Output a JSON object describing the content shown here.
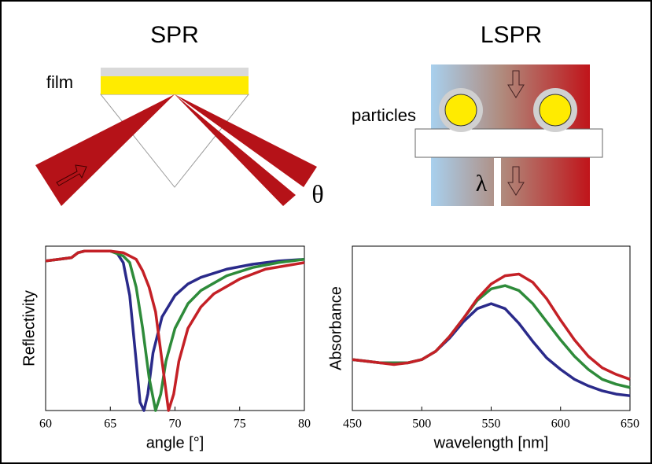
{
  "diagram": {
    "spr_title": "SPR",
    "film": "film",
    "theta": "θ",
    "lspr_title": "LSPR",
    "particles": "particles",
    "lambda": "λ"
  },
  "chart_data": [
    {
      "type": "line",
      "x_label": "angle [°]",
      "y_label": "Reflectivity",
      "xlim": [
        60,
        80
      ],
      "xticks": [
        60,
        65,
        70,
        75,
        80
      ],
      "ylim": [
        0,
        1
      ],
      "series": [
        {
          "color": "#2a2a8a",
          "x": [
            60,
            61,
            62,
            62.5,
            63,
            64,
            65,
            65.5,
            66,
            66.5,
            67,
            67.3,
            67.6,
            67.9,
            68.3,
            69,
            70,
            71,
            72,
            74,
            76,
            78,
            80
          ],
          "values": [
            0.91,
            0.92,
            0.93,
            0.96,
            0.97,
            0.97,
            0.97,
            0.96,
            0.9,
            0.7,
            0.3,
            0.05,
            0.0,
            0.1,
            0.35,
            0.57,
            0.7,
            0.77,
            0.81,
            0.86,
            0.89,
            0.91,
            0.92
          ]
        },
        {
          "color": "#2e8b3a",
          "x": [
            60,
            61,
            62,
            62.5,
            63,
            64,
            65,
            66,
            66.5,
            67,
            67.5,
            68,
            68.5,
            68.9,
            69.3,
            70,
            71,
            72,
            74,
            76,
            78,
            80
          ],
          "values": [
            0.91,
            0.92,
            0.93,
            0.96,
            0.97,
            0.97,
            0.97,
            0.94,
            0.9,
            0.75,
            0.5,
            0.2,
            0.0,
            0.1,
            0.3,
            0.5,
            0.65,
            0.73,
            0.82,
            0.87,
            0.9,
            0.92
          ]
        },
        {
          "color": "#c42026",
          "x": [
            60,
            61,
            62,
            62.5,
            63,
            64,
            65,
            66,
            67,
            67.5,
            68,
            68.5,
            69,
            69.5,
            69.9,
            70.3,
            71,
            72,
            73,
            75,
            77,
            80
          ],
          "values": [
            0.91,
            0.92,
            0.93,
            0.96,
            0.97,
            0.97,
            0.97,
            0.96,
            0.92,
            0.85,
            0.75,
            0.6,
            0.3,
            0.0,
            0.1,
            0.3,
            0.5,
            0.63,
            0.71,
            0.8,
            0.86,
            0.9
          ]
        }
      ]
    },
    {
      "type": "line",
      "x_label": "wavelength [nm]",
      "y_label": "Absorbance",
      "xlim": [
        450,
        650
      ],
      "xticks": [
        450,
        500,
        550,
        600,
        650
      ],
      "ylim": [
        0,
        1
      ],
      "series": [
        {
          "color": "#2a2a8a",
          "x": [
            450,
            460,
            470,
            480,
            490,
            500,
            510,
            520,
            530,
            540,
            550,
            560,
            570,
            580,
            590,
            600,
            610,
            620,
            630,
            640,
            650
          ],
          "values": [
            0.31,
            0.3,
            0.29,
            0.29,
            0.29,
            0.31,
            0.36,
            0.44,
            0.54,
            0.62,
            0.65,
            0.62,
            0.53,
            0.42,
            0.32,
            0.25,
            0.19,
            0.15,
            0.12,
            0.1,
            0.09
          ]
        },
        {
          "color": "#2e8b3a",
          "x": [
            450,
            460,
            470,
            480,
            490,
            500,
            510,
            520,
            530,
            540,
            550,
            560,
            570,
            580,
            590,
            600,
            610,
            620,
            630,
            640,
            650
          ],
          "values": [
            0.31,
            0.3,
            0.29,
            0.29,
            0.29,
            0.31,
            0.36,
            0.45,
            0.56,
            0.67,
            0.74,
            0.76,
            0.73,
            0.65,
            0.54,
            0.43,
            0.33,
            0.25,
            0.19,
            0.16,
            0.14
          ]
        },
        {
          "color": "#c42026",
          "x": [
            450,
            460,
            470,
            480,
            490,
            500,
            510,
            520,
            530,
            540,
            550,
            560,
            570,
            580,
            590,
            600,
            610,
            620,
            630,
            640,
            650
          ],
          "values": [
            0.31,
            0.3,
            0.29,
            0.28,
            0.29,
            0.31,
            0.36,
            0.45,
            0.56,
            0.68,
            0.77,
            0.82,
            0.83,
            0.78,
            0.68,
            0.55,
            0.43,
            0.33,
            0.26,
            0.22,
            0.19
          ]
        }
      ]
    }
  ]
}
